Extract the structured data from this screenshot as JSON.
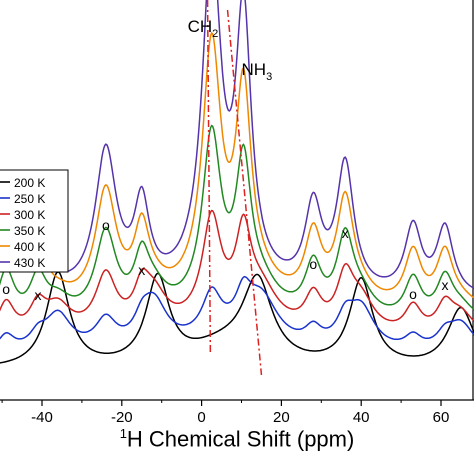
{
  "chart_data": {
    "type": "line",
    "xlabel_sup": "1",
    "xlabel": "H Chemical Shift (ppm)",
    "xlim": [
      -50,
      70
    ],
    "x_ticks": [
      "-40",
      "-20",
      "0",
      "20",
      "40",
      "60"
    ],
    "x_tick_values": [
      -40,
      -20,
      0,
      20,
      40,
      60
    ],
    "legend_position": "left",
    "colors": {
      "200 K": "#000000",
      "250 K": "#1a33cc",
      "300 K": "#cc2222",
      "350 K": "#228822",
      "400 K": "#ee8800",
      "430 K": "#5533aa",
      "guide": "#dd2222"
    },
    "series": [
      {
        "name": "200 K"
      },
      {
        "name": "250 K"
      },
      {
        "name": "300 K"
      },
      {
        "name": "350 K"
      },
      {
        "name": "400 K"
      },
      {
        "name": "430 K"
      }
    ],
    "annotations": [
      {
        "text": "CH",
        "sub": "2",
        "x": 2
      },
      {
        "text": "NH",
        "sub": "3",
        "x": 10
      },
      {
        "text": "o",
        "x": -49
      },
      {
        "text": "x",
        "x": -41
      },
      {
        "text": "o",
        "x": -24
      },
      {
        "text": "x",
        "x": -15
      },
      {
        "text": "o",
        "x": 28
      },
      {
        "text": "x",
        "x": 36
      },
      {
        "text": "o",
        "x": 53
      },
      {
        "text": "x",
        "x": 61
      }
    ]
  }
}
